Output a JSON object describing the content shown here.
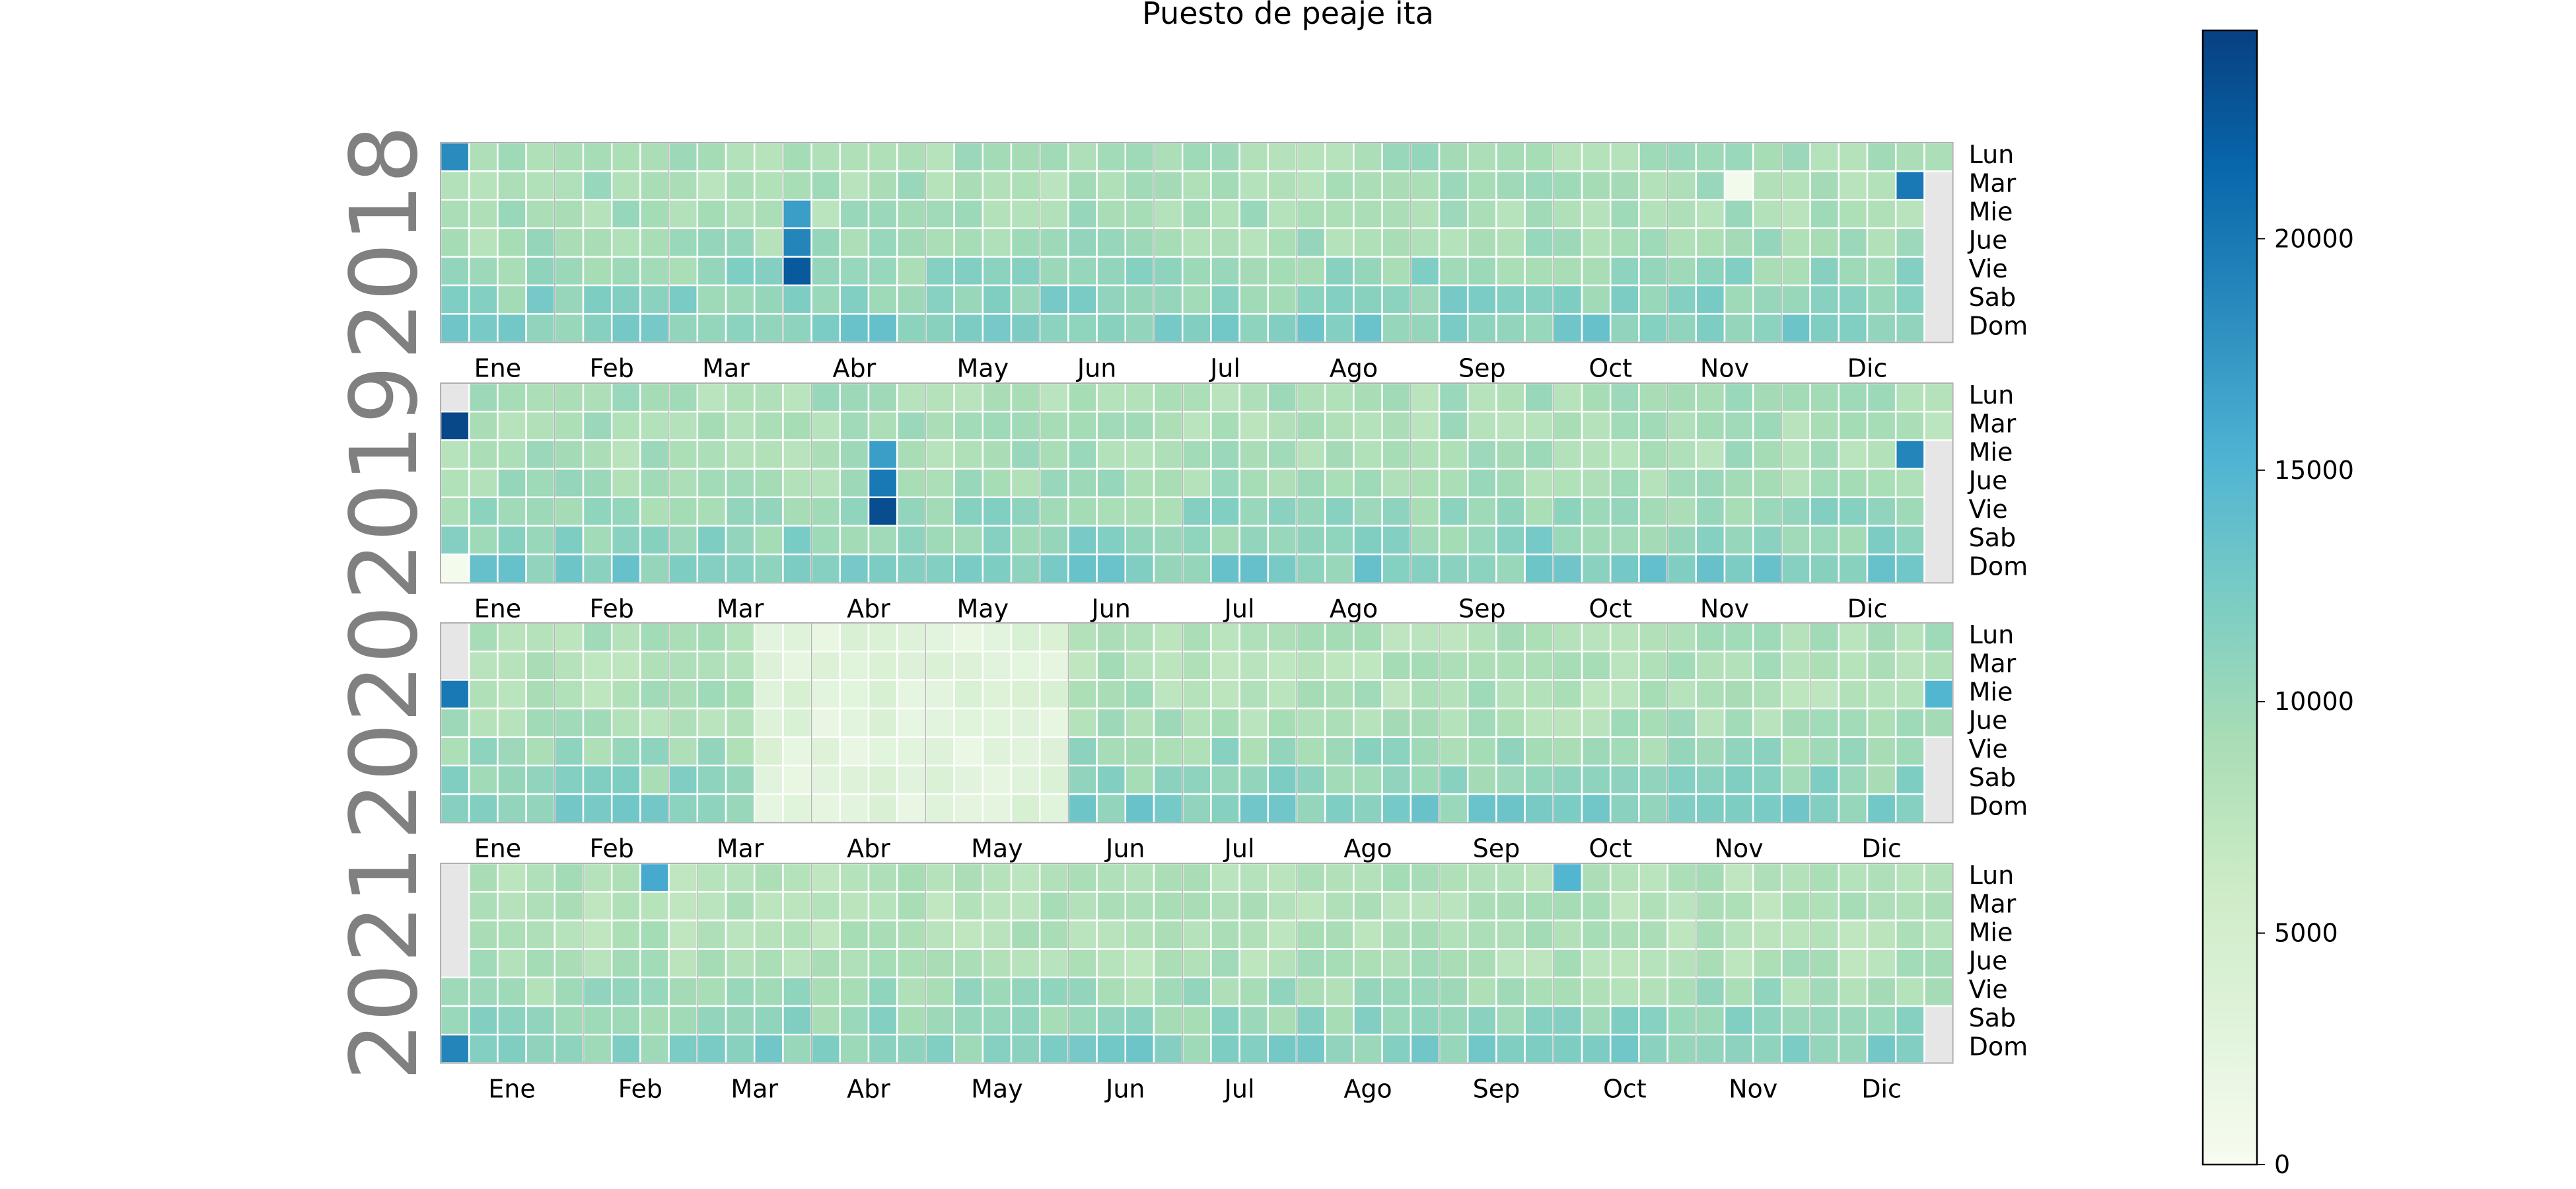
{
  "chart_data": {
    "type": "heatmap",
    "title": "Puesto de peaje ita",
    "colormap": "GnBu",
    "vmin": 0,
    "vmax": 24500,
    "colorbar_ticks": [
      0,
      5000,
      10000,
      15000,
      20000
    ],
    "weekday_labels": [
      "Lun",
      "Mar",
      "Mie",
      "Jue",
      "Vie",
      "Sab",
      "Dom"
    ],
    "month_labels": [
      "Ene",
      "Feb",
      "Mar",
      "Abr",
      "May",
      "Jun",
      "Jul",
      "Ago",
      "Sep",
      "Oct",
      "Nov",
      "Dic"
    ],
    "years": [
      {
        "year": "2018",
        "typical_daily_value": 9500,
        "weekday_pattern": [
          9200,
          9000,
          9100,
          9300,
          10500,
          11000,
          12000
        ],
        "highlights": [
          {
            "label": "Ene-01",
            "value": 18500
          },
          {
            "label": "Mar-28",
            "value": 17000
          },
          {
            "label": "Mar-29",
            "value": 19000
          },
          {
            "label": "Mar-30",
            "value": 22500
          },
          {
            "label": "Dic-25",
            "value": 20000
          },
          {
            "label": "Nov-13",
            "value": 800
          }
        ]
      },
      {
        "year": "2019",
        "typical_daily_value": 9200,
        "weekday_pattern": [
          9000,
          8800,
          9000,
          9200,
          10300,
          11000,
          12000
        ],
        "highlights": [
          {
            "label": "Ene-01",
            "value": 24000
          },
          {
            "label": "Ene-06",
            "value": 500
          },
          {
            "label": "Abr-17",
            "value": 17000
          },
          {
            "label": "Abr-18",
            "value": 20000
          },
          {
            "label": "Abr-19",
            "value": 23500
          },
          {
            "label": "Dic-25",
            "value": 19000
          }
        ]
      },
      {
        "year": "2020",
        "typical_daily_value": 8800,
        "weekday_pattern": [
          8600,
          8400,
          8600,
          8800,
          10000,
          10800,
          11800
        ],
        "highlights": [
          {
            "label": "Ene-01",
            "value": 20000
          },
          {
            "label": "Mar-16 a May-31",
            "value": 3000
          },
          {
            "label": "Dic-30",
            "value": 15000
          }
        ]
      },
      {
        "year": "2021",
        "typical_daily_value": 8500,
        "weekday_pattern": [
          8300,
          8200,
          8300,
          8500,
          9500,
          10500,
          11500
        ],
        "highlights": [
          {
            "label": "Ene-03",
            "value": 19000
          },
          {
            "label": "Feb-15",
            "value": 16000
          },
          {
            "label": "Sep-27",
            "value": 15000
          }
        ]
      }
    ]
  }
}
